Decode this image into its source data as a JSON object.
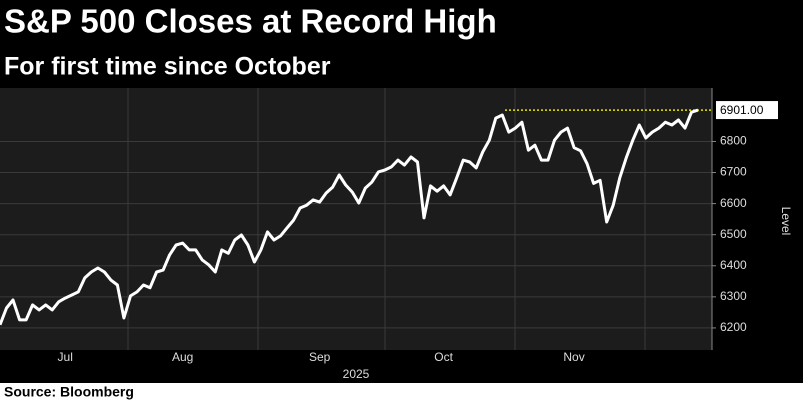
{
  "chart_data": {
    "type": "line",
    "title": "S&P 500 Closes at Record High",
    "subtitle": "For first time since October",
    "y_label": "Level",
    "x_label": "2025",
    "source": "Source: Bloomberg",
    "categories": [
      null,
      null,
      null,
      null,
      null,
      null,
      null,
      null,
      null,
      null,
      "Jul",
      null,
      null,
      null,
      null,
      null,
      null,
      null,
      null,
      null,
      null,
      null,
      null,
      null,
      null,
      null,
      null,
      null,
      "Aug",
      null,
      null,
      null,
      null,
      null,
      null,
      null,
      null,
      null,
      null,
      null,
      null,
      null,
      null,
      null,
      null,
      null,
      null,
      null,
      null,
      "Sep",
      null,
      null,
      null,
      null,
      null,
      null,
      null,
      null,
      null,
      null,
      null,
      null,
      null,
      null,
      null,
      null,
      null,
      null,
      "Oct",
      null,
      null,
      null,
      null,
      null,
      null,
      null,
      null,
      null,
      null,
      null,
      null,
      null,
      null,
      null,
      null,
      null,
      null,
      null,
      "Nov",
      null,
      null,
      null,
      null,
      null,
      null,
      null,
      null,
      null,
      null,
      null,
      null,
      null,
      null,
      null,
      null,
      null,
      null,
      null
    ],
    "series": [
      {
        "name": "S&P 500",
        "color": "#ffffff",
        "values": [
          6210,
          6264,
          6290,
          6226,
          6226,
          6274,
          6258,
          6274,
          6258,
          6284,
          6296,
          6306,
          6316,
          6361,
          6380,
          6393,
          6380,
          6354,
          6338,
          6232,
          6303,
          6316,
          6338,
          6329,
          6380,
          6386,
          6435,
          6467,
          6473,
          6451,
          6451,
          6419,
          6403,
          6380,
          6451,
          6440,
          6483,
          6499,
          6467,
          6412,
          6451,
          6509,
          6483,
          6496,
          6522,
          6547,
          6586,
          6595,
          6612,
          6605,
          6634,
          6653,
          6692,
          6660,
          6637,
          6602,
          6650,
          6669,
          6702,
          6708,
          6718,
          6740,
          6724,
          6750,
          6734,
          6554,
          6657,
          6640,
          6657,
          6628,
          6682,
          6740,
          6734,
          6715,
          6766,
          6804,
          6875,
          6885,
          6830,
          6843,
          6862,
          6772,
          6788,
          6740,
          6740,
          6804,
          6830,
          6843,
          6780,
          6770,
          6728,
          6665,
          6675,
          6541,
          6595,
          6682,
          6747,
          6804,
          6853,
          6811,
          6830,
          6843,
          6862,
          6853,
          6869,
          6843,
          6894,
          6901
        ]
      }
    ],
    "reference_line": {
      "value": 6901,
      "label": "6901.00",
      "color": "#e6e600"
    },
    "ylim": [
      6129,
      6972
    ],
    "yticks": [
      6200,
      6300,
      6400,
      6500,
      6600,
      6700,
      6800
    ],
    "grid": true
  }
}
